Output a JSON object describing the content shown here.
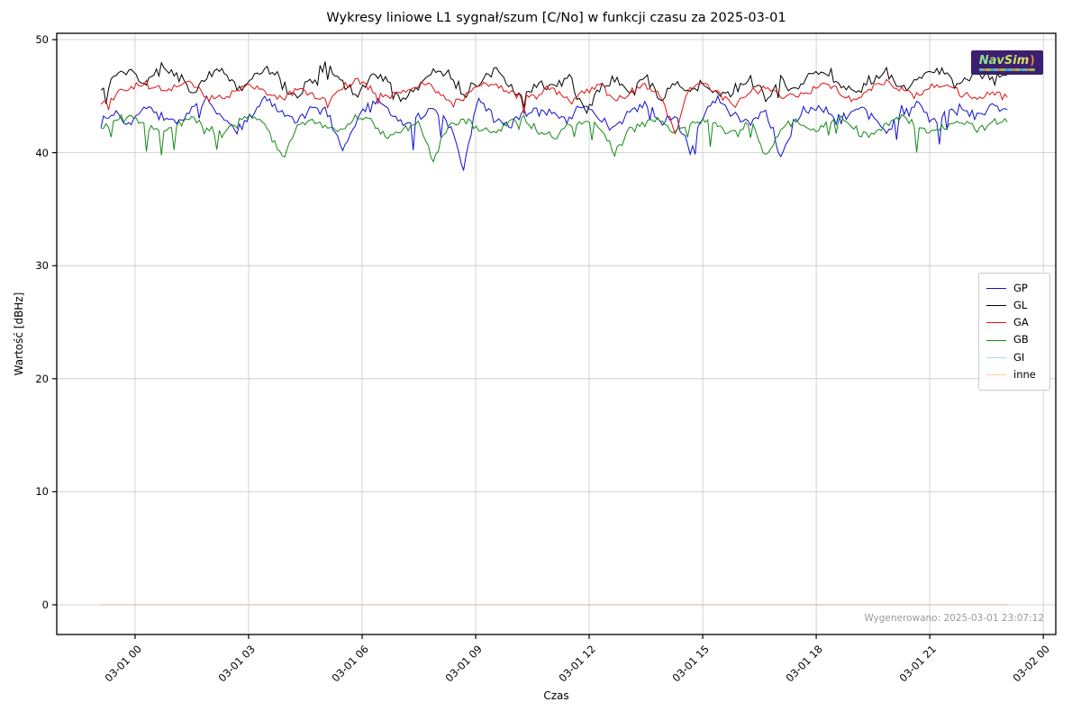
{
  "chart_data": {
    "type": "line",
    "title": "Wykresy liniowe L1 sygnał/szum [C/No] w funkcji czasu za 2025-03-01",
    "xlabel": "Czas",
    "ylabel": "Wartość [dBHz]",
    "grid": true,
    "legend_position": "center right",
    "ylim": [
      -2.63,
      50.56
    ],
    "y_ticks": [
      0,
      10,
      20,
      30,
      40,
      50
    ],
    "xlim_hours": [
      -2.07,
      24.33
    ],
    "x_ticks": [
      {
        "hour": 0,
        "label": "03-01 00"
      },
      {
        "hour": 3,
        "label": "03-01 03"
      },
      {
        "hour": 6,
        "label": "03-01 06"
      },
      {
        "hour": 9,
        "label": "03-01 09"
      },
      {
        "hour": 12,
        "label": "03-01 12"
      },
      {
        "hour": 15,
        "label": "03-01 15"
      },
      {
        "hour": 18,
        "label": "03-01 18"
      },
      {
        "hour": 21,
        "label": "03-01 21"
      },
      {
        "hour": 24,
        "label": "03-02 00"
      }
    ],
    "time_start_hours": -0.9,
    "time_end_hours": 23.05,
    "grid_color": "#c8c8c8",
    "series": [
      {
        "name": "GP",
        "color": "#0f0fd0",
        "jitter": 0.6,
        "spike_prob": 0.05,
        "spike_depth": 2.6,
        "values": [
          42.8,
          43.5,
          42.6,
          44.1,
          43.2,
          42.4,
          43.8,
          44.5,
          43.0,
          42.2,
          43.6,
          44.8,
          43.3,
          42.7,
          44.2,
          43.5,
          40.3,
          43.1,
          44.6,
          43.8,
          42.5,
          43.2,
          44.0,
          42.8,
          38.6,
          44.9,
          43.1,
          42.3,
          43.7,
          43.6,
          43.4,
          42.9,
          44.3,
          43.0,
          42.1,
          43.8,
          44.4,
          42.6,
          43.3,
          40.1,
          43.9,
          44.7,
          43.2,
          42.5,
          43.6,
          39.8,
          43.0,
          44.2,
          43.5,
          42.8,
          44.0,
          43.3,
          41.9,
          43.7,
          44.5,
          42.7,
          43.4,
          44.1,
          43.0,
          44.6,
          43.8
        ]
      },
      {
        "name": "GL",
        "color": "#000000",
        "jitter": 0.65,
        "spike_prob": 0.02,
        "spike_depth": 1.6,
        "values": [
          45.2,
          46.8,
          47.3,
          46.2,
          47.5,
          46.9,
          45.4,
          46.6,
          47.2,
          45.8,
          46.4,
          47.6,
          46.1,
          44.9,
          46.7,
          47.8,
          46.3,
          45.1,
          47.0,
          46.5,
          44.6,
          45.9,
          47.2,
          46.8,
          45.3,
          46.1,
          47.4,
          46.0,
          44.8,
          46.3,
          45.6,
          46.9,
          43.4,
          45.7,
          46.6,
          45.2,
          46.8,
          44.7,
          46.2,
          45.5,
          46.1,
          44.9,
          45.8,
          46.7,
          45.0,
          46.4,
          45.3,
          46.9,
          47.3,
          46.0,
          45.4,
          46.6,
          47.1,
          45.7,
          46.3,
          47.5,
          46.8,
          45.9,
          47.2,
          46.4,
          46.9
        ]
      },
      {
        "name": "GA",
        "color": "#e01010",
        "jitter": 0.45,
        "spike_prob": 0.02,
        "spike_depth": 1.8,
        "values": [
          44.3,
          45.1,
          45.8,
          46.1,
          45.4,
          45.9,
          46.2,
          45.0,
          44.6,
          45.5,
          46.0,
          45.2,
          44.8,
          45.6,
          45.1,
          44.4,
          45.8,
          46.3,
          45.5,
          44.9,
          45.3,
          46.1,
          45.7,
          44.5,
          45.0,
          45.9,
          46.2,
          45.4,
          44.7,
          45.2,
          45.8,
          44.3,
          45.5,
          46.0,
          44.8,
          45.3,
          45.9,
          45.1,
          41.9,
          45.7,
          46.2,
          45.0,
          44.4,
          45.4,
          45.8,
          45.2,
          44.9,
          45.6,
          46.1,
          45.3,
          44.7,
          45.9,
          46.3,
          45.5,
          45.0,
          45.7,
          46.0,
          45.2,
          44.8,
          45.4,
          44.9
        ]
      },
      {
        "name": "GB",
        "color": "#148a14",
        "jitter": 0.45,
        "spike_prob": 0.05,
        "spike_depth": 2.2,
        "values": [
          42.0,
          42.8,
          43.2,
          42.4,
          41.8,
          42.6,
          43.0,
          42.2,
          41.5,
          42.7,
          43.3,
          42.1,
          39.6,
          42.5,
          42.9,
          41.9,
          42.3,
          43.1,
          42.6,
          41.4,
          42.0,
          42.8,
          39.3,
          42.4,
          43.0,
          42.2,
          41.7,
          42.6,
          43.2,
          42.0,
          41.3,
          42.5,
          42.9,
          42.3,
          39.9,
          42.1,
          42.7,
          43.1,
          41.8,
          42.4,
          43.0,
          42.2,
          41.6,
          42.8,
          39.5,
          42.3,
          42.9,
          41.9,
          42.5,
          43.1,
          42.0,
          41.5,
          42.6,
          43.2,
          42.4,
          41.8,
          42.2,
          42.8,
          42.1,
          42.6,
          42.7
        ]
      },
      {
        "name": "GI",
        "color": "#add8e6",
        "jitter": 0,
        "spike_prob": 0,
        "spike_depth": 0,
        "constant": 0
      },
      {
        "name": "inne",
        "color": "#ffcf9e",
        "plot_color": "#c9b795",
        "jitter": 0,
        "spike_prob": 0,
        "spike_depth": 0,
        "constant": 0
      }
    ]
  },
  "watermark": {
    "logo_text": "NavSim",
    "logo_swoosh": ")"
  },
  "annotations": {
    "generated_text": "Wygenerowano: 2025-03-01 23:07:12"
  }
}
